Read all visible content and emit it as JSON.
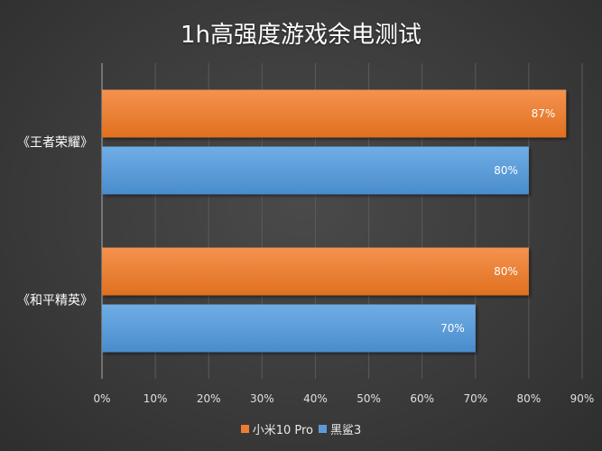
{
  "chart_data": {
    "type": "bar",
    "orientation": "horizontal",
    "title": "1h高强度游戏余电测试",
    "categories": [
      "《王者荣耀》",
      "《和平精英》"
    ],
    "series": [
      {
        "name": "小米10 Pro",
        "color": "#ed7d31",
        "values": [
          87,
          80
        ],
        "labels": [
          "87%",
          "80%"
        ]
      },
      {
        "name": "黑鲨3",
        "color": "#5b9bd5",
        "values": [
          80,
          70
        ],
        "labels": [
          "80%",
          "70%"
        ]
      }
    ],
    "xlim": [
      0,
      90
    ],
    "x_ticks": [
      "0%",
      "10%",
      "20%",
      "30%",
      "40%",
      "50%",
      "60%",
      "70%",
      "80%",
      "90%"
    ],
    "grid": true,
    "legend_position": "bottom"
  }
}
